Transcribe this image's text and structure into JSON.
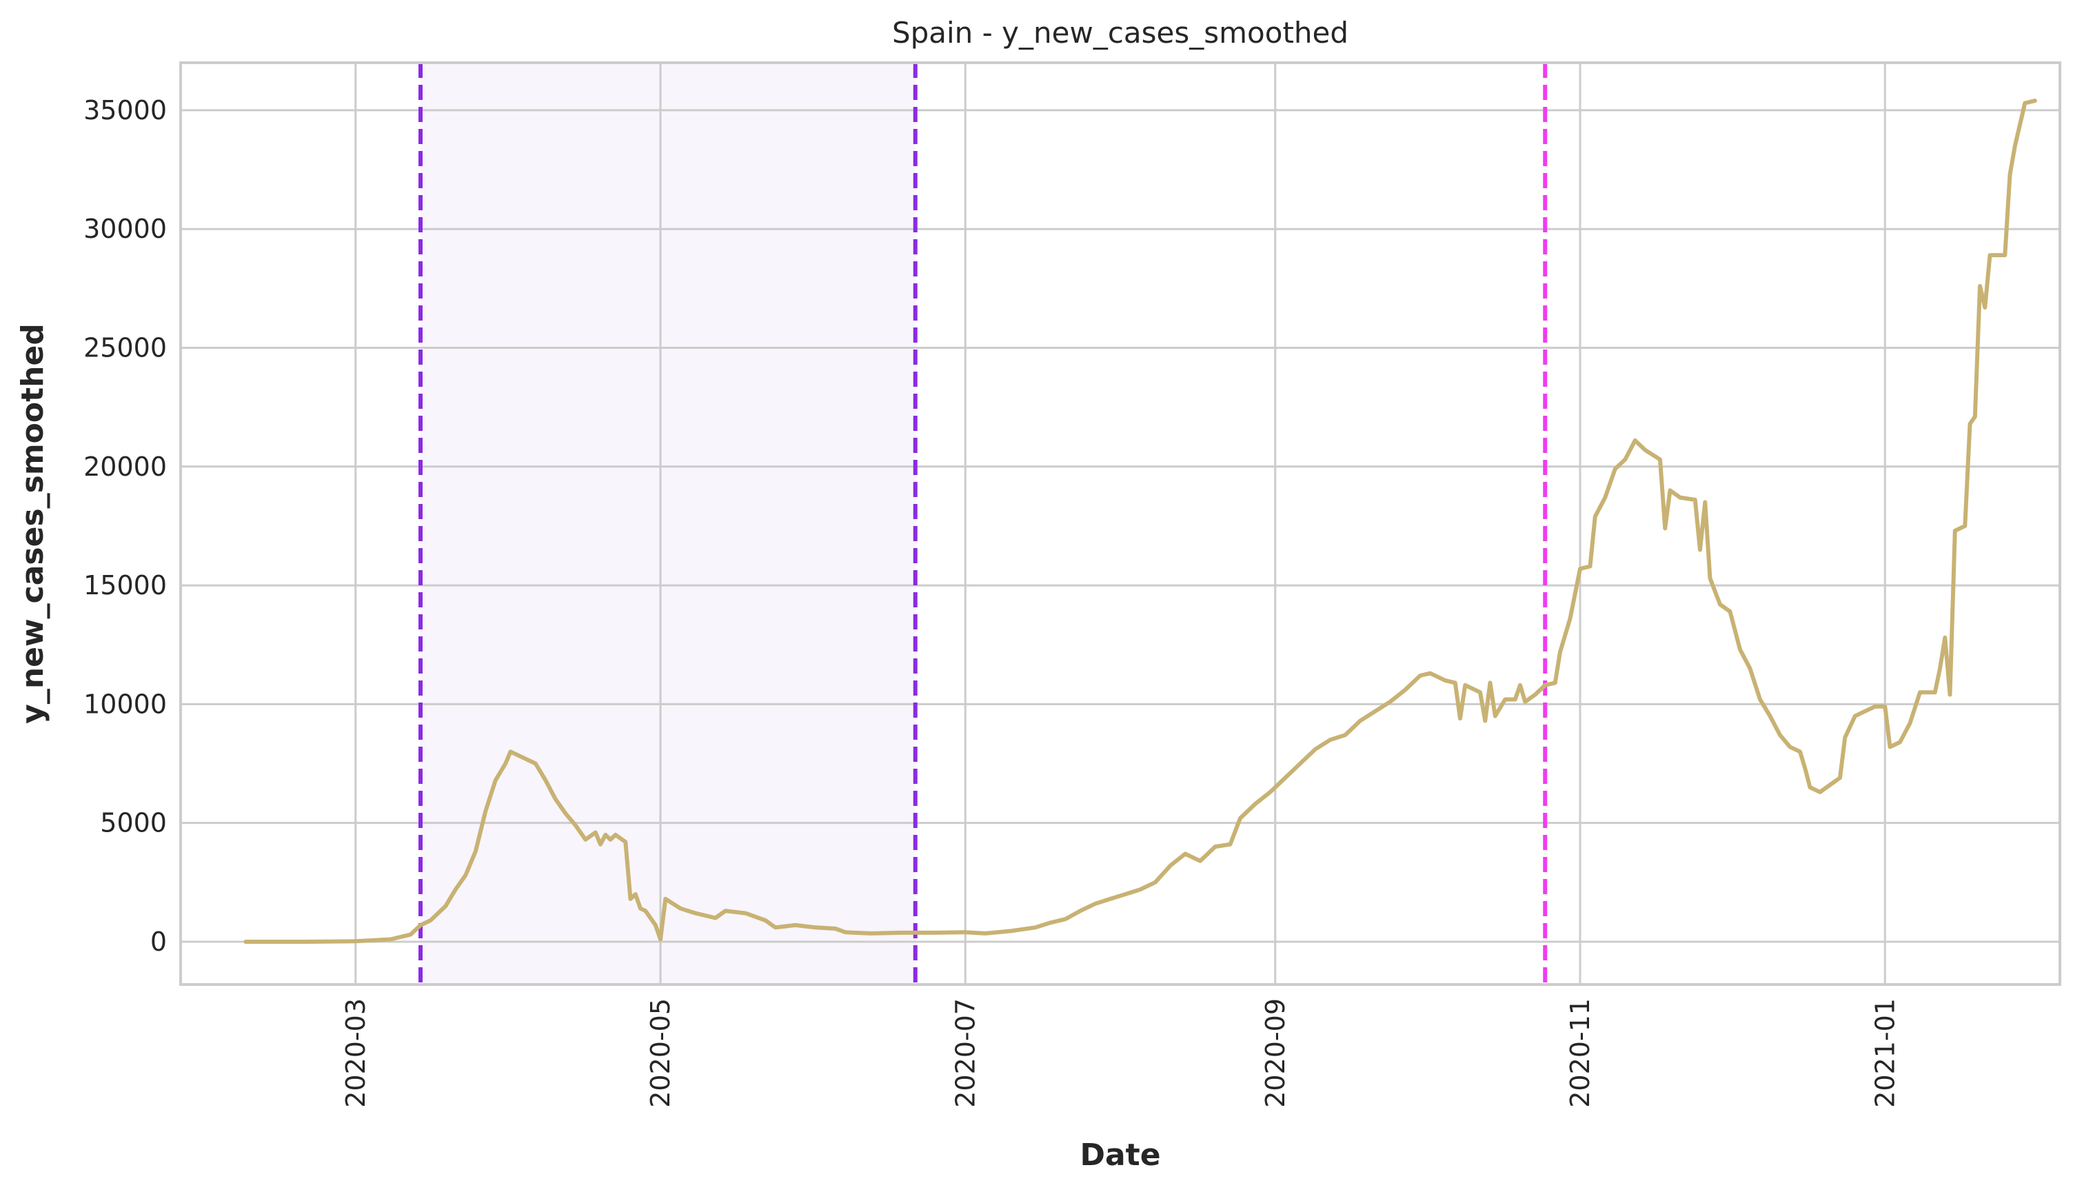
{
  "chart_data": {
    "type": "line",
    "title": "Spain - y_new_cases_smoothed",
    "xlabel": "Date",
    "ylabel": "y_new_cases_smoothed",
    "grid": true,
    "legend": "none",
    "xlim": [
      "2020-01-26",
      "2021-02-05"
    ],
    "ylim": [
      -1800,
      37000
    ],
    "x_ticks": [
      "2020-03-01",
      "2020-05-01",
      "2020-07-01",
      "2020-09-01",
      "2020-11-01",
      "2021-01-01"
    ],
    "x_tick_labels": [
      "2020-03",
      "2020-05",
      "2020-07",
      "2020-09",
      "2020-11",
      "2021-01"
    ],
    "y_ticks": [
      0,
      5000,
      10000,
      15000,
      20000,
      25000,
      30000,
      35000
    ],
    "y_tick_labels": [
      "0",
      "5000",
      "10000",
      "15000",
      "20000",
      "25000",
      "30000",
      "35000"
    ],
    "shaded_region": {
      "start": "2020-03-14",
      "end": "2020-06-21",
      "color": "#f8f5fc"
    },
    "vlines": [
      {
        "x": "2020-03-14",
        "color": "#8a2be2",
        "style": "dashed"
      },
      {
        "x": "2020-06-21",
        "color": "#8a2be2",
        "style": "dashed"
      },
      {
        "x": "2020-10-25",
        "color": "#f03cf0",
        "style": "dashed"
      }
    ],
    "series": [
      {
        "color": "#c8b273",
        "points": [
          [
            "2020-02-08",
            0
          ],
          [
            "2020-02-20",
            0
          ],
          [
            "2020-03-01",
            20
          ],
          [
            "2020-03-08",
            100
          ],
          [
            "2020-03-12",
            300
          ],
          [
            "2020-03-14",
            700
          ],
          [
            "2020-03-16",
            900
          ],
          [
            "2020-03-19",
            1500
          ],
          [
            "2020-03-21",
            2200
          ],
          [
            "2020-03-23",
            2800
          ],
          [
            "2020-03-25",
            3800
          ],
          [
            "2020-03-27",
            5500
          ],
          [
            "2020-03-29",
            6800
          ],
          [
            "2020-03-31",
            7500
          ],
          [
            "2020-04-01",
            8000
          ],
          [
            "2020-04-03",
            7800
          ],
          [
            "2020-04-06",
            7500
          ],
          [
            "2020-04-08",
            6800
          ],
          [
            "2020-04-10",
            6000
          ],
          [
            "2020-04-12",
            5400
          ],
          [
            "2020-04-14",
            4900
          ],
          [
            "2020-04-16",
            4300
          ],
          [
            "2020-04-18",
            4600
          ],
          [
            "2020-04-19",
            4100
          ],
          [
            "2020-04-20",
            4500
          ],
          [
            "2020-04-21",
            4300
          ],
          [
            "2020-04-22",
            4500
          ],
          [
            "2020-04-24",
            4200
          ],
          [
            "2020-04-25",
            1800
          ],
          [
            "2020-04-26",
            2000
          ],
          [
            "2020-04-27",
            1400
          ],
          [
            "2020-04-28",
            1300
          ],
          [
            "2020-04-30",
            700
          ],
          [
            "2020-05-01",
            100
          ],
          [
            "2020-05-02",
            1800
          ],
          [
            "2020-05-05",
            1400
          ],
          [
            "2020-05-08",
            1200
          ],
          [
            "2020-05-12",
            1000
          ],
          [
            "2020-05-14",
            1300
          ],
          [
            "2020-05-18",
            1200
          ],
          [
            "2020-05-22",
            900
          ],
          [
            "2020-05-24",
            600
          ],
          [
            "2020-05-28",
            700
          ],
          [
            "2020-06-01",
            600
          ],
          [
            "2020-06-05",
            550
          ],
          [
            "2020-06-07",
            400
          ],
          [
            "2020-06-12",
            350
          ],
          [
            "2020-06-18",
            380
          ],
          [
            "2020-06-25",
            380
          ],
          [
            "2020-07-01",
            400
          ],
          [
            "2020-07-05",
            350
          ],
          [
            "2020-07-10",
            450
          ],
          [
            "2020-07-15",
            600
          ],
          [
            "2020-07-18",
            800
          ],
          [
            "2020-07-21",
            950
          ],
          [
            "2020-07-24",
            1300
          ],
          [
            "2020-07-27",
            1600
          ],
          [
            "2020-07-30",
            1800
          ],
          [
            "2020-08-02",
            2000
          ],
          [
            "2020-08-05",
            2200
          ],
          [
            "2020-08-08",
            2500
          ],
          [
            "2020-08-11",
            3200
          ],
          [
            "2020-08-14",
            3700
          ],
          [
            "2020-08-17",
            3400
          ],
          [
            "2020-08-20",
            4000
          ],
          [
            "2020-08-23",
            4100
          ],
          [
            "2020-08-25",
            5200
          ],
          [
            "2020-08-28",
            5800
          ],
          [
            "2020-08-31",
            6300
          ],
          [
            "2020-09-03",
            6900
          ],
          [
            "2020-09-06",
            7500
          ],
          [
            "2020-09-09",
            8100
          ],
          [
            "2020-09-12",
            8500
          ],
          [
            "2020-09-15",
            8700
          ],
          [
            "2020-09-18",
            9300
          ],
          [
            "2020-09-21",
            9700
          ],
          [
            "2020-09-24",
            10100
          ],
          [
            "2020-09-27",
            10600
          ],
          [
            "2020-09-30",
            11200
          ],
          [
            "2020-10-02",
            11300
          ],
          [
            "2020-10-05",
            11000
          ],
          [
            "2020-10-07",
            10900
          ],
          [
            "2020-10-08",
            9400
          ],
          [
            "2020-10-09",
            10800
          ],
          [
            "2020-10-12",
            10500
          ],
          [
            "2020-10-13",
            9300
          ],
          [
            "2020-10-14",
            10900
          ],
          [
            "2020-10-15",
            9500
          ],
          [
            "2020-10-17",
            10200
          ],
          [
            "2020-10-19",
            10200
          ],
          [
            "2020-10-20",
            10800
          ],
          [
            "2020-10-21",
            10100
          ],
          [
            "2020-10-23",
            10400
          ],
          [
            "2020-10-25",
            10800
          ],
          [
            "2020-10-27",
            10900
          ],
          [
            "2020-10-28",
            12200
          ],
          [
            "2020-10-30",
            13600
          ],
          [
            "2020-11-01",
            15700
          ],
          [
            "2020-11-03",
            15800
          ],
          [
            "2020-11-04",
            17900
          ],
          [
            "2020-11-06",
            18700
          ],
          [
            "2020-11-08",
            19900
          ],
          [
            "2020-11-10",
            20300
          ],
          [
            "2020-11-12",
            21100
          ],
          [
            "2020-11-14",
            20700
          ],
          [
            "2020-11-17",
            20300
          ],
          [
            "2020-11-18",
            17400
          ],
          [
            "2020-11-19",
            19000
          ],
          [
            "2020-11-21",
            18700
          ],
          [
            "2020-11-24",
            18600
          ],
          [
            "2020-11-25",
            16500
          ],
          [
            "2020-11-26",
            18500
          ],
          [
            "2020-11-27",
            15300
          ],
          [
            "2020-11-29",
            14200
          ],
          [
            "2020-12-01",
            13900
          ],
          [
            "2020-12-03",
            12300
          ],
          [
            "2020-12-05",
            11500
          ],
          [
            "2020-12-07",
            10200
          ],
          [
            "2020-12-09",
            9500
          ],
          [
            "2020-12-11",
            8700
          ],
          [
            "2020-12-13",
            8200
          ],
          [
            "2020-12-15",
            8000
          ],
          [
            "2020-12-16",
            7300
          ],
          [
            "2020-12-17",
            6500
          ],
          [
            "2020-12-19",
            6300
          ],
          [
            "2020-12-21",
            6600
          ],
          [
            "2020-12-23",
            6900
          ],
          [
            "2020-12-24",
            8600
          ],
          [
            "2020-12-26",
            9500
          ],
          [
            "2020-12-28",
            9700
          ],
          [
            "2020-12-30",
            9900
          ],
          [
            "2021-01-01",
            9900
          ],
          [
            "2021-01-02",
            8200
          ],
          [
            "2021-01-04",
            8400
          ],
          [
            "2021-01-06",
            9200
          ],
          [
            "2021-01-08",
            10500
          ],
          [
            "2021-01-11",
            10500
          ],
          [
            "2021-01-12",
            11500
          ],
          [
            "2021-01-13",
            12800
          ],
          [
            "2021-01-14",
            10400
          ],
          [
            "2021-01-15",
            17300
          ],
          [
            "2021-01-17",
            17500
          ],
          [
            "2021-01-18",
            21800
          ],
          [
            "2021-01-19",
            22100
          ],
          [
            "2021-01-20",
            27600
          ],
          [
            "2021-01-21",
            26700
          ],
          [
            "2021-01-22",
            28900
          ],
          [
            "2021-01-25",
            28900
          ],
          [
            "2021-01-26",
            32300
          ],
          [
            "2021-01-27",
            33500
          ],
          [
            "2021-01-29",
            35300
          ],
          [
            "2021-01-31",
            35400
          ]
        ]
      }
    ]
  }
}
